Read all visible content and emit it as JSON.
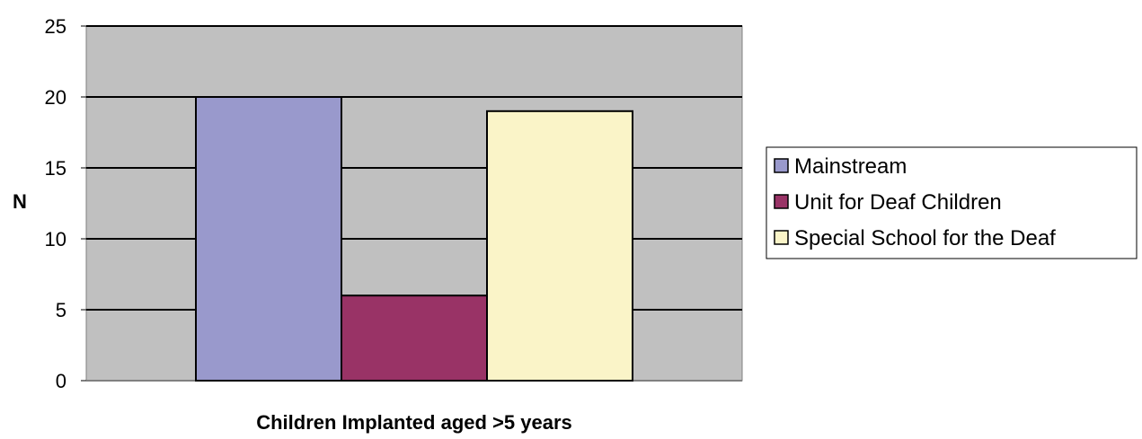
{
  "chart_data": {
    "type": "bar",
    "title": "",
    "xlabel": "Children Implanted aged >5 years",
    "ylabel": "N",
    "ylim": [
      0,
      25
    ],
    "yticks": [
      0,
      5,
      10,
      15,
      20,
      25
    ],
    "grid": true,
    "legend_position": "right",
    "series": [
      {
        "name": "Mainstream",
        "values": [
          20
        ],
        "color": "#9999cc"
      },
      {
        "name": "Unit for Deaf Children",
        "values": [
          6
        ],
        "color": "#993366"
      },
      {
        "name": "Special School for the Deaf",
        "values": [
          19
        ],
        "color": "#faf4c8"
      }
    ],
    "colors": {
      "plot_background": "#c0c0c0",
      "gridline": "#000000",
      "bar_border": "#000000"
    }
  }
}
